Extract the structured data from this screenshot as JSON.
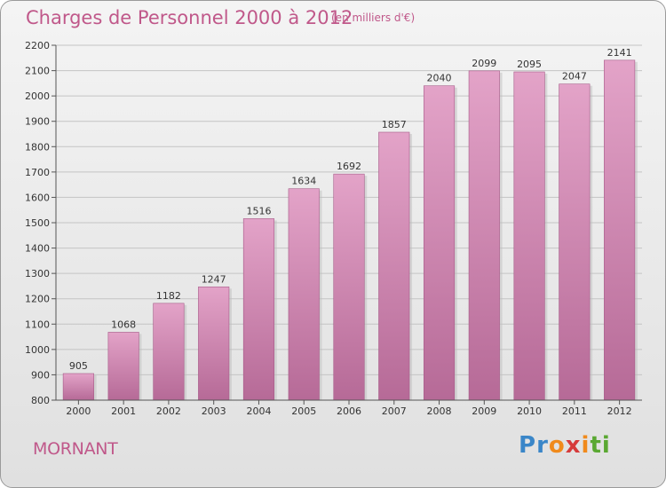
{
  "title": "Charges de Personnel 2000 à 2012",
  "subtitle": "(en milliers d'€)",
  "commune": "MORNANT",
  "logo": {
    "letters": [
      "P",
      "r",
      "o",
      "x",
      "i",
      "t",
      "i"
    ],
    "colors": [
      "#3a86c8",
      "#3a86c8",
      "#f08a1c",
      "#d63b3b",
      "#f08a1c",
      "#5aa832",
      "#5aa832"
    ]
  },
  "colors": {
    "bar": "#d98ab5",
    "bar_dark": "#b66a97",
    "title": "#c0588a",
    "grid": "#c4c4c4"
  },
  "chart_data": {
    "type": "bar",
    "title": "Charges de Personnel 2000 à 2012",
    "subtitle": "(en milliers d'€)",
    "categories": [
      "2000",
      "2001",
      "2002",
      "2003",
      "2004",
      "2005",
      "2006",
      "2007",
      "2008",
      "2009",
      "2010",
      "2011",
      "2012"
    ],
    "values": [
      905,
      1068,
      1182,
      1247,
      1516,
      1634,
      1692,
      1857,
      2040,
      2099,
      2095,
      2047,
      2141
    ],
    "ylim": [
      800,
      2200
    ],
    "yticks": [
      800,
      900,
      1000,
      1100,
      1200,
      1300,
      1400,
      1500,
      1600,
      1700,
      1800,
      1900,
      2000,
      2100,
      2200
    ],
    "grid": true,
    "xlabel": "",
    "ylabel": ""
  }
}
